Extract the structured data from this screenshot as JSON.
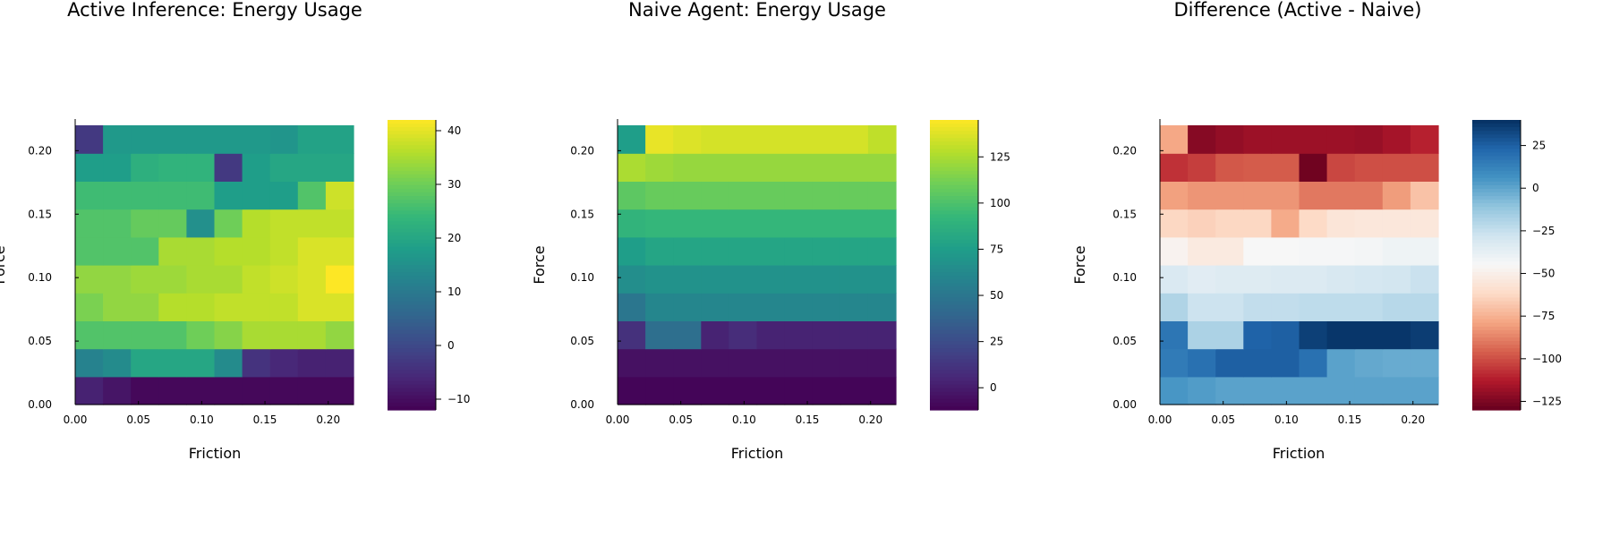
{
  "chart_data": [
    {
      "type": "heatmap",
      "title": "Active Inference: Energy Usage",
      "xlabel": "Friction",
      "ylabel": "Force",
      "x": [
        0.0,
        0.022,
        0.044,
        0.067,
        0.089,
        0.111,
        0.133,
        0.156,
        0.178,
        0.2
      ],
      "y": [
        0.0,
        0.022,
        0.044,
        0.067,
        0.089,
        0.111,
        0.133,
        0.156,
        0.178,
        0.2
      ],
      "xlim": [
        0.0,
        0.22
      ],
      "ylim": [
        0.0,
        0.22
      ],
      "xticks": [
        "0.00",
        "0.05",
        "0.10",
        "0.15",
        "0.20"
      ],
      "yticks": [
        "0.00",
        "0.05",
        "0.10",
        "0.15",
        "0.20"
      ],
      "colormap": "viridis",
      "clim": [
        -12,
        42
      ],
      "colorbar_ticks": [
        "-10",
        "0",
        "10",
        "20",
        "30",
        "40"
      ],
      "z": [
        [
          -7,
          -9,
          -11,
          -11,
          -11,
          -11,
          -11,
          -11,
          -11,
          -11
        ],
        [
          12,
          14,
          20,
          20,
          20,
          14,
          -4,
          -6,
          -7,
          -7
        ],
        [
          27,
          27,
          27,
          27,
          30,
          32,
          35,
          35,
          35,
          33
        ],
        [
          31,
          33,
          33,
          36,
          36,
          37,
          37,
          37,
          39,
          39
        ],
        [
          33,
          33,
          34,
          34,
          35,
          35,
          37,
          38,
          39,
          42
        ],
        [
          27,
          27,
          27,
          35,
          35,
          36,
          36,
          37,
          39,
          39
        ],
        [
          27,
          27,
          29,
          29,
          15,
          30,
          36,
          37,
          37,
          37
        ],
        [
          25,
          25,
          25,
          25,
          25,
          18,
          18,
          18,
          27,
          38
        ],
        [
          18,
          18,
          22,
          23,
          23,
          -3,
          18,
          20,
          20,
          20
        ],
        [
          -3,
          17,
          17,
          17,
          17,
          17,
          17,
          16,
          19,
          19
        ]
      ]
    },
    {
      "type": "heatmap",
      "title": "Naive Agent: Energy Usage",
      "xlabel": "Friction",
      "ylabel": "Force",
      "x": [
        0.0,
        0.022,
        0.044,
        0.067,
        0.089,
        0.111,
        0.133,
        0.156,
        0.178,
        0.2
      ],
      "y": [
        0.0,
        0.022,
        0.044,
        0.067,
        0.089,
        0.111,
        0.133,
        0.156,
        0.178,
        0.2
      ],
      "xlim": [
        0.0,
        0.22
      ],
      "ylim": [
        0.0,
        0.22
      ],
      "xticks": [
        "0.00",
        "0.05",
        "0.10",
        "0.15",
        "0.20"
      ],
      "yticks": [
        "0.00",
        "0.05",
        "0.10",
        "0.15",
        "0.20"
      ],
      "colormap": "viridis",
      "clim": [
        -12,
        145
      ],
      "colorbar_ticks": [
        "0",
        "25",
        "50",
        "75",
        "100",
        "125"
      ],
      "z": [
        [
          -10,
          -10,
          -10,
          -10,
          -10,
          -10,
          -10,
          -10,
          -10,
          -10
        ],
        [
          -5,
          -5,
          -5,
          -5,
          -5,
          -5,
          -5,
          -5,
          -5,
          -5
        ],
        [
          10,
          45,
          45,
          3,
          8,
          3,
          3,
          3,
          3,
          3
        ],
        [
          50,
          60,
          60,
          60,
          60,
          60,
          60,
          60,
          60,
          60
        ],
        [
          65,
          68,
          68,
          68,
          68,
          68,
          68,
          68,
          68,
          68
        ],
        [
          75,
          80,
          80,
          80,
          80,
          80,
          80,
          80,
          80,
          80
        ],
        [
          90,
          92,
          92,
          92,
          92,
          92,
          92,
          92,
          92,
          92
        ],
        [
          105,
          108,
          108,
          108,
          108,
          108,
          108,
          108,
          108,
          108
        ],
        [
          125,
          122,
          120,
          120,
          120,
          120,
          120,
          120,
          120,
          120
        ],
        [
          75,
          140,
          137,
          135,
          135,
          135,
          135,
          135,
          135,
          130
        ]
      ]
    },
    {
      "type": "heatmap",
      "title": "Difference (Active - Naive)",
      "xlabel": "Friction",
      "ylabel": "Force",
      "x": [
        0.0,
        0.022,
        0.044,
        0.067,
        0.089,
        0.111,
        0.133,
        0.156,
        0.178,
        0.2
      ],
      "y": [
        0.0,
        0.022,
        0.044,
        0.067,
        0.089,
        0.111,
        0.133,
        0.156,
        0.178,
        0.2
      ],
      "xlim": [
        0.0,
        0.22
      ],
      "ylim": [
        0.0,
        0.22
      ],
      "xticks": [
        "0.00",
        "0.05",
        "0.10",
        "0.15",
        "0.20"
      ],
      "yticks": [
        "0.00",
        "0.05",
        "0.10",
        "0.15",
        "0.20"
      ],
      "colormap": "RdBu",
      "clim": [
        -130,
        40
      ],
      "colorbar_ticks": [
        "-125",
        "-100",
        "-75",
        "-50",
        "-25",
        "0",
        "25"
      ],
      "z": [
        [
          5,
          3,
          1,
          1,
          1,
          1,
          1,
          1,
          1,
          1
        ],
        [
          15,
          19,
          25,
          25,
          25,
          19,
          1,
          -1,
          -2,
          -2
        ],
        [
          17,
          -18,
          -18,
          24,
          25,
          35,
          38,
          38,
          38,
          36
        ],
        [
          -19,
          -27,
          -27,
          -24,
          -24,
          -23,
          -23,
          -23,
          -21,
          -21
        ],
        [
          -32,
          -35,
          -34,
          -34,
          -33,
          -33,
          -31,
          -30,
          -29,
          -26
        ],
        [
          -48,
          -53,
          -53,
          -45,
          -45,
          -44,
          -44,
          -43,
          -41,
          -41
        ],
        [
          -63,
          -65,
          -63,
          -63,
          -77,
          -62,
          -56,
          -55,
          -55,
          -55
        ],
        [
          -80,
          -83,
          -83,
          -83,
          -83,
          -90,
          -90,
          -90,
          -81,
          -70
        ],
        [
          -107,
          -104,
          -98,
          -97,
          -97,
          -128,
          -102,
          -100,
          -100,
          -100
        ],
        [
          -78,
          -123,
          -120,
          -118,
          -118,
          -118,
          -118,
          -119,
          -116,
          -111
        ]
      ]
    }
  ]
}
